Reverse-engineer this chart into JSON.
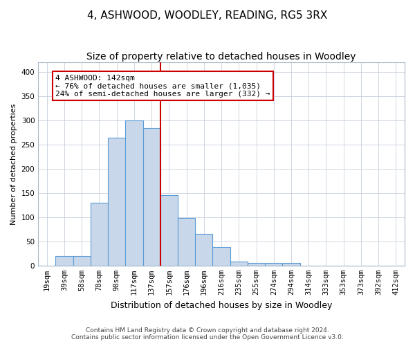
{
  "title": "4, ASHWOOD, WOODLEY, READING, RG5 3RX",
  "subtitle": "Size of property relative to detached houses in Woodley",
  "xlabel": "Distribution of detached houses by size in Woodley",
  "ylabel": "Number of detached properties",
  "footer1": "Contains HM Land Registry data © Crown copyright and database right 2024.",
  "footer2": "Contains public sector information licensed under the Open Government Licence v3.0.",
  "bin_labels": [
    "19sqm",
    "39sqm",
    "58sqm",
    "78sqm",
    "98sqm",
    "117sqm",
    "137sqm",
    "157sqm",
    "176sqm",
    "196sqm",
    "216sqm",
    "235sqm",
    "255sqm",
    "274sqm",
    "294sqm",
    "314sqm",
    "333sqm",
    "353sqm",
    "373sqm",
    "392sqm",
    "412sqm"
  ],
  "bar_heights": [
    0,
    20,
    20,
    130,
    265,
    300,
    285,
    145,
    98,
    65,
    38,
    8,
    5,
    5,
    5,
    0,
    0,
    0,
    0,
    0,
    0
  ],
  "bar_color": "#c8d8ea",
  "bar_edge_color": "#5b9bd5",
  "grid_color": "#c8d0dc",
  "annotation_text_line1": "4 ASHWOOD: 142sqm",
  "annotation_text_line2": "← 76% of detached houses are smaller (1,035)",
  "annotation_text_line3": "24% of semi-detached houses are larger (332) →",
  "vline_x_index": 6.5,
  "vline_color": "#cc0000",
  "ylim": [
    0,
    420
  ],
  "yticks": [
    0,
    50,
    100,
    150,
    200,
    250,
    300,
    350,
    400
  ],
  "title_fontsize": 11,
  "subtitle_fontsize": 10,
  "xlabel_fontsize": 9,
  "ylabel_fontsize": 8,
  "tick_fontsize": 7.5,
  "footer_fontsize": 6.5,
  "ann_fontsize": 8
}
